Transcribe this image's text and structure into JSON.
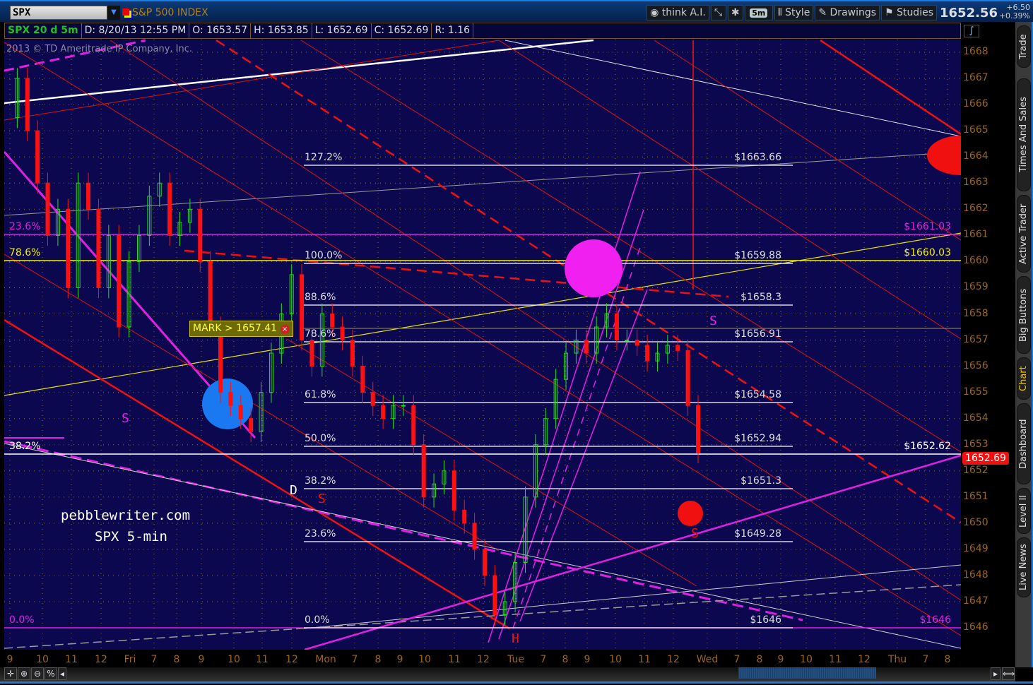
{
  "toolbar": {
    "symbol": "SPX",
    "symbol_name": "S&P 500 INDEX",
    "buttons": [
      "think A.I.",
      "5m",
      "Style",
      "Drawings",
      "Studies"
    ],
    "last": "1652.56",
    "change": "+6.50",
    "change_pct": "+0.39%"
  },
  "infobar": {
    "title": "SPX 20 d 5m",
    "date": "D: 8/20/13 12:55 PM",
    "open": "O: 1653.57",
    "high": "H: 1653.85",
    "low": "L: 1652.69",
    "close": "C: 1652.69",
    "range": "R: 1.16"
  },
  "copyright": "2013 © TD Ameritrade IP Company, Inc.",
  "watermark": {
    "site": "pebblewriter.com",
    "caption": "SPX 5-min"
  },
  "mark_label": "MARK > 1657.41",
  "current_price": "1652.69",
  "side_tabs": [
    "Trade",
    "Times And Sales",
    "Active Trader",
    "Big Buttons",
    "Chart",
    "Dashboard",
    "Level II",
    "Live News"
  ],
  "colors": {
    "background": "#0c0850",
    "up": "#22dd22",
    "down": "#ff1010",
    "axis_text": "#9a6420",
    "accent": "#1e7be0"
  },
  "fib_levels": [
    {
      "pct": "127.2%",
      "price": "$1663.66"
    },
    {
      "pct": "100.0%",
      "price": "$1659.88"
    },
    {
      "pct": "88.6%",
      "price": "$1658.3"
    },
    {
      "pct": "78.6%",
      "price": "$1656.91"
    },
    {
      "pct": "61.8%",
      "price": "$1654.58"
    },
    {
      "pct": "50.0%",
      "price": "$1652.94"
    },
    {
      "pct": "38.2%",
      "price": "$1651.3"
    },
    {
      "pct": "23.6%",
      "price": "$1649.28"
    },
    {
      "pct": "0.0%",
      "price": "$1646"
    }
  ],
  "long_levels": [
    {
      "pct": "23.6%",
      "price": "$1661.03",
      "color": "#e020e0"
    },
    {
      "pct": "78.6%",
      "price": "$1660.03",
      "color": "#f0f000"
    },
    {
      "pct": "38.2%",
      "price": "$1652.62",
      "color": "#ffffff"
    },
    {
      "pct": "0.0%",
      "price": "$1646",
      "color": "#e020e0"
    }
  ],
  "markers": [
    "S",
    "D",
    "S",
    "H",
    "S",
    "S"
  ],
  "chart_data": {
    "type": "candlestick",
    "title": "SPX 20 d 5m",
    "y_ticks": [
      1668,
      1667,
      1666,
      1665,
      1664,
      1663,
      1662,
      1661,
      1660,
      1659,
      1658,
      1657,
      1656,
      1655,
      1654,
      1653,
      1652,
      1651,
      1650,
      1649,
      1648,
      1647,
      1646
    ],
    "ylim": [
      1645.2,
      1668.5
    ],
    "x_ticks": [
      "9",
      "10",
      "11",
      "12",
      "Fri",
      "7",
      "8",
      "9",
      "10",
      "11",
      "12",
      "Mon",
      "7",
      "8",
      "9",
      "10",
      "11",
      "12",
      "Tue",
      "7",
      "8",
      "9",
      "10",
      "11",
      "12",
      "Wed",
      "7",
      "8",
      "9",
      "10",
      "11",
      "12",
      "Thu",
      "7",
      "8"
    ],
    "grid": true,
    "closes": [
      1665.5,
      1667,
      1665,
      1663,
      1661,
      1662,
      1659,
      1663,
      1662,
      1659,
      1661,
      1657.5,
      1660,
      1661,
      1662.5,
      1663,
      1661,
      1661.5,
      1662,
      1660,
      1657.5,
      1655,
      1654.5,
      1654,
      1653.5,
      1655,
      1656.5,
      1658,
      1659.5,
      1657,
      1656,
      1658,
      1657.5,
      1657,
      1656,
      1655,
      1654.5,
      1654,
      1654.5,
      1654.5,
      1653,
      1651,
      1651.5,
      1652,
      1650.5,
      1650,
      1649,
      1648,
      1646.5,
      1647,
      1648.5,
      1651,
      1653,
      1654,
      1655.5,
      1656.5,
      1657,
      1656.5,
      1657.5,
      1658,
      1657,
      1657,
      1656.8,
      1656.2,
      1656.5,
      1656.8,
      1656.6,
      1654.5,
      1652.69
    ]
  }
}
